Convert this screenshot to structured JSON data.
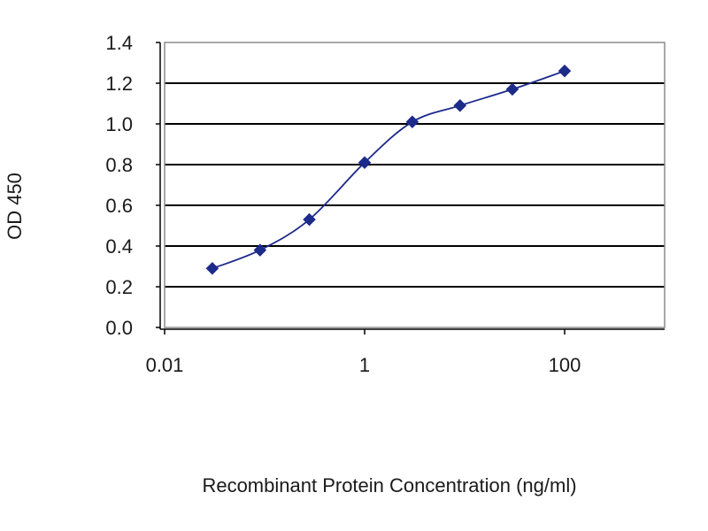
{
  "chart_data": {
    "type": "line",
    "title": "",
    "xlabel": "Recombinant Protein Concentration (ng/ml)",
    "ylabel": "OD 450",
    "x_scale": "log",
    "xlim": [
      0.01,
      1000
    ],
    "ylim": [
      0.0,
      1.4
    ],
    "x_ticks": [
      {
        "value": 0.01,
        "label": "0.01"
      },
      {
        "value": 1,
        "label": "1"
      },
      {
        "value": 100,
        "label": "100"
      }
    ],
    "y_ticks": [
      {
        "value": 0.0,
        "label": "0.0"
      },
      {
        "value": 0.2,
        "label": "0.2"
      },
      {
        "value": 0.4,
        "label": "0.4"
      },
      {
        "value": 0.6,
        "label": "0.6"
      },
      {
        "value": 0.8,
        "label": "0.8"
      },
      {
        "value": 1.0,
        "label": "1.0"
      },
      {
        "value": 1.2,
        "label": "1.2"
      },
      {
        "value": 1.4,
        "label": "1.4"
      }
    ],
    "grid": "horizontal",
    "legend": "none",
    "colors": {
      "series": "#1c2a8a",
      "grid": "#000000",
      "plot_border": "#8c8c8c",
      "axis": "#000000"
    },
    "series": [
      {
        "x": [
          0.03,
          0.09,
          0.28,
          1.0,
          3.0,
          9.0,
          30.0,
          100.0
        ],
        "y": [
          0.29,
          0.38,
          0.53,
          0.81,
          1.01,
          1.09,
          1.17,
          1.26
        ]
      }
    ]
  }
}
